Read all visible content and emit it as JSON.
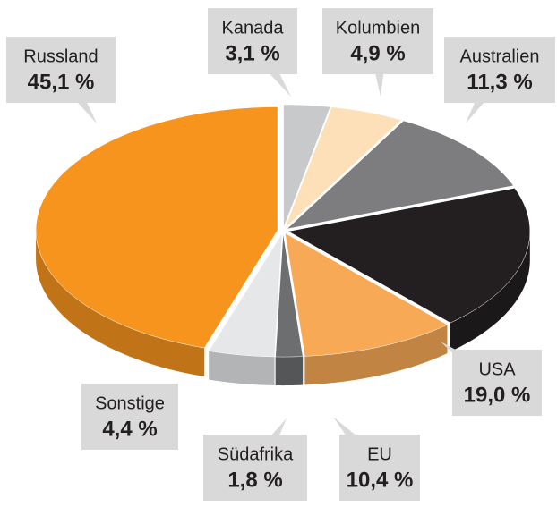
{
  "chart_data": {
    "type": "pie",
    "categories": [
      "Kanada",
      "Kolumbien",
      "Australien",
      "USA",
      "EU",
      "Südafrika",
      "Sonstige",
      "Russland"
    ],
    "values": [
      3.1,
      4.9,
      11.3,
      19.0,
      10.4,
      1.8,
      4.4,
      45.1
    ],
    "value_labels": [
      "3,1 %",
      "4,9 %",
      "11,3 %",
      "19,0 %",
      "10,4 %",
      "1,8 %",
      "4,4 %",
      "45,1 %"
    ],
    "colors": [
      "#c8c9cb",
      "#fde0b8",
      "#7d7d7f",
      "#231f20",
      "#f7a955",
      "#6d6e70",
      "#e6e7e8",
      "#f7941d"
    ]
  }
}
